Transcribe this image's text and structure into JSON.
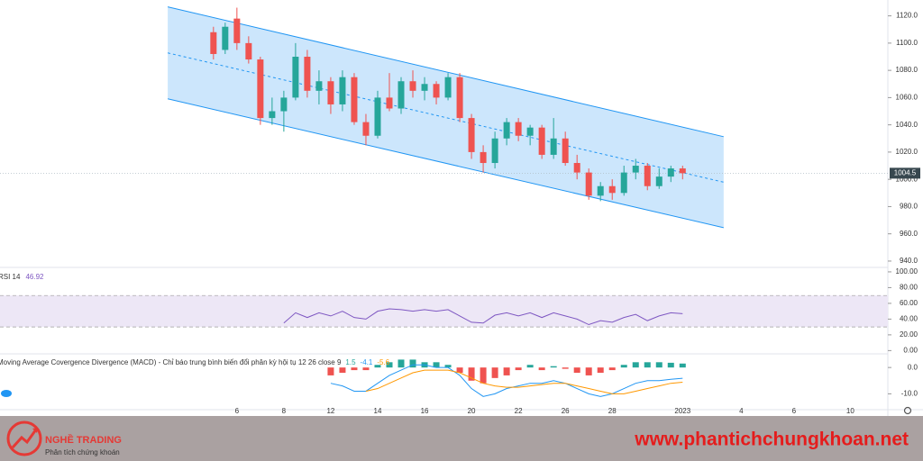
{
  "chart_data": [
    {
      "type": "candlestick",
      "xlim": [
        -18.2,
        57.5
      ],
      "xticks": [
        {
          "value": 2,
          "label": "6"
        },
        {
          "value": 6,
          "label": "8"
        },
        {
          "value": 10,
          "label": "12"
        },
        {
          "value": 14,
          "label": "14"
        },
        {
          "value": 18,
          "label": "16"
        },
        {
          "value": 22,
          "label": "20"
        },
        {
          "value": 26,
          "label": "22"
        },
        {
          "value": 30,
          "label": "26"
        },
        {
          "value": 34,
          "label": "28"
        },
        {
          "value": 40,
          "label": "2023"
        },
        {
          "value": 45,
          "label": "4"
        },
        {
          "value": 49.5,
          "label": "6"
        },
        {
          "value": 54.3,
          "label": "10"
        }
      ],
      "ylim": [
        936,
        1129
      ],
      "yticks": [
        {
          "value": 940,
          "label": "940.0"
        },
        {
          "value": 960,
          "label": "960.0"
        },
        {
          "value": 980,
          "label": "980.0"
        },
        {
          "value": 1000,
          "label": "1000.0"
        },
        {
          "value": 1020,
          "label": "1020.0"
        },
        {
          "value": 1040,
          "label": "1040.0"
        },
        {
          "value": 1060,
          "label": "1060.0"
        },
        {
          "value": 1080,
          "label": "1080.0"
        },
        {
          "value": 1100,
          "label": "1100.0"
        },
        {
          "value": 1120,
          "label": "1120.0"
        }
      ],
      "colors": {
        "up": "#26a69a",
        "down": "#ef5350"
      },
      "open": [
        1108,
        1095,
        1118,
        1100,
        1088,
        1045,
        1050,
        1060,
        1090,
        1065,
        1072,
        1055,
        1075,
        1042,
        1032,
        1060,
        1052,
        1072,
        1065,
        1070,
        1060,
        1075,
        1045,
        1020,
        1012,
        1030,
        1042,
        1032,
        1038,
        1018,
        1030,
        1012,
        1005,
        988,
        995,
        990,
        1005,
        1010,
        995,
        1002,
        1008
      ],
      "high": [
        1112,
        1115,
        1126,
        1105,
        1090,
        1060,
        1065,
        1100,
        1095,
        1080,
        1075,
        1080,
        1078,
        1048,
        1065,
        1078,
        1075,
        1080,
        1075,
        1072,
        1078,
        1078,
        1048,
        1025,
        1035,
        1045,
        1045,
        1040,
        1040,
        1045,
        1035,
        1018,
        1008,
        998,
        1000,
        1010,
        1015,
        1012,
        1008,
        1010,
        1010
      ],
      "low": [
        1088,
        1092,
        1095,
        1085,
        1040,
        1040,
        1035,
        1058,
        1060,
        1055,
        1048,
        1050,
        1040,
        1025,
        1030,
        1050,
        1048,
        1060,
        1058,
        1055,
        1058,
        1042,
        1015,
        1005,
        1008,
        1025,
        1028,
        1025,
        1015,
        1015,
        1010,
        1000,
        985,
        984,
        985,
        988,
        1000,
        992,
        993,
        998,
        1000
      ],
      "close": [
        1092,
        1112,
        1100,
        1088,
        1045,
        1050,
        1060,
        1090,
        1065,
        1072,
        1055,
        1075,
        1042,
        1032,
        1060,
        1052,
        1072,
        1065,
        1070,
        1060,
        1075,
        1045,
        1020,
        1012,
        1030,
        1042,
        1032,
        1038,
        1018,
        1030,
        1012,
        1005,
        988,
        995,
        990,
        1005,
        1010,
        995,
        1002,
        1008,
        1004.5
      ],
      "last_price": 1004.5,
      "channel": {
        "color": "#2196f3",
        "fill": "#bbdefb",
        "upper": [
          [
            -3.9,
            1126.6
          ],
          [
            43.5,
            1031.3
          ]
        ],
        "middle": [
          [
            -3.9,
            1092.8
          ],
          [
            43.5,
            997.9
          ]
        ],
        "lower": [
          [
            -3.9,
            1059.1
          ],
          [
            43.5,
            964.5
          ]
        ]
      }
    },
    {
      "type": "line",
      "title": "RSI 14",
      "value_label": 46.92,
      "color": "#7e57c2",
      "xlim": [
        -18.2,
        57.5
      ],
      "ylim": [
        -3,
        104.5
      ],
      "band": [
        30,
        70
      ],
      "band_color": "#ede7f6",
      "yticks": [
        {
          "value": 0,
          "label": "0.00"
        },
        {
          "value": 20,
          "label": "20.00"
        },
        {
          "value": 40,
          "label": "40.00"
        },
        {
          "value": 60,
          "label": "60.00"
        },
        {
          "value": 80,
          "label": "80.00"
        },
        {
          "value": 100,
          "label": "100.00"
        }
      ],
      "values": [
        null,
        null,
        null,
        null,
        null,
        null,
        35,
        48,
        42,
        48,
        44,
        50,
        42,
        40,
        50,
        53,
        52,
        50,
        52,
        50,
        52,
        44,
        36,
        35,
        45,
        48,
        44,
        48,
        42,
        48,
        44,
        40,
        33,
        38,
        36,
        42,
        46,
        38,
        44,
        48,
        46.92
      ]
    },
    {
      "type": "macd",
      "title": "Moving Average Covergence Divergence (MACD) - Chỉ báo trung bình biến đổi phân kỳ hội tụ 12 26 close 9",
      "xlim": [
        -18.2,
        57.5
      ],
      "ylim": [
        -15,
        4.5
      ],
      "yticks": [
        {
          "value": 0,
          "label": "0.0"
        },
        {
          "value": -10,
          "label": "-10.0"
        }
      ],
      "series": [
        {
          "type": "histogram",
          "color": "#26a69a",
          "down_color": "#ef5350",
          "value_label": 1.5,
          "values": [
            null,
            null,
            null,
            null,
            null,
            null,
            null,
            null,
            null,
            null,
            -3,
            -2,
            -1,
            -1,
            1,
            2,
            3,
            3,
            2,
            2,
            1,
            -2,
            -5,
            -6,
            -4,
            -3,
            -1,
            1,
            -1,
            0.5,
            -0.5,
            -2,
            -3,
            -2,
            -1,
            1,
            2,
            2,
            2,
            1.8,
            1.5
          ]
        },
        {
          "type": "line",
          "color": "#2196f3",
          "value_label": -4.1,
          "values": [
            null,
            null,
            null,
            null,
            null,
            null,
            null,
            null,
            null,
            null,
            -6,
            -7,
            -9,
            -9,
            -6,
            -3,
            -1,
            1,
            1,
            0,
            0,
            -3,
            -8,
            -11,
            -10,
            -8,
            -7,
            -6,
            -6,
            -5,
            -6,
            -8,
            -10,
            -11,
            -10,
            -8,
            -6,
            -5,
            -5,
            -4.5,
            -4.1
          ]
        },
        {
          "type": "line",
          "color": "#ff9800",
          "value_label": -5.6,
          "values": [
            null,
            null,
            null,
            null,
            null,
            null,
            null,
            null,
            null,
            null,
            null,
            null,
            null,
            -9,
            -8,
            -6,
            -4,
            -2,
            -1,
            -1,
            -1,
            -2,
            -4,
            -6,
            -7,
            -7.5,
            -7.5,
            -7,
            -6.5,
            -6,
            -6,
            -7,
            -8,
            -9,
            -10,
            -10,
            -9,
            -8,
            -7,
            -6,
            -5.6
          ]
        }
      ]
    }
  ],
  "branding": {
    "logo_title": "NGHỀ TRADING",
    "logo_subtitle": "Phân tích chứng khoán",
    "website": "www.phantichchungkhoan.net"
  }
}
